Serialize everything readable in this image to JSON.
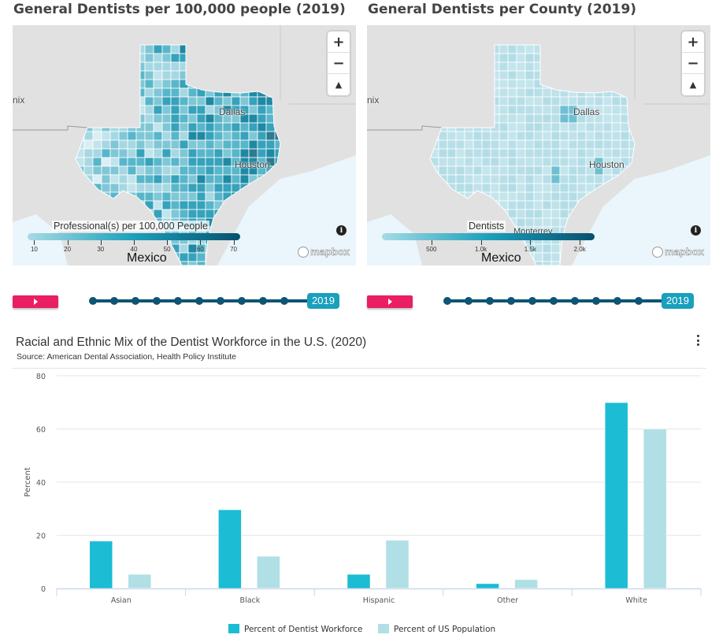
{
  "maps": [
    {
      "title": "General Dentists per 100,000 people (2019)",
      "legend_title": "Professional(s) per 100,000 People",
      "legend_ticks": [
        "10",
        "20",
        "30",
        "40",
        "50",
        "60",
        "70"
      ],
      "legend_range": [
        8,
        72
      ],
      "cities": {
        "left_label": "nix",
        "dallas": "Dallas",
        "houston": "Houston",
        "mexico": "Mexico",
        "extra": ""
      },
      "zoom_in": "+",
      "zoom_out": "−",
      "compass": "▲",
      "attribution": "mapbox",
      "info_icon": "i",
      "timeline_year": "2019",
      "shading": "varied"
    },
    {
      "title": "General Dentists per County (2019)",
      "legend_title": "Dentists",
      "legend_ticks": [
        "500",
        "1.0k",
        "1.5k",
        "2.0k"
      ],
      "legend_range": [
        0,
        2150
      ],
      "cities": {
        "left_label": "nix",
        "dallas": "Dallas",
        "houston": "Houston",
        "mexico": "Mexico",
        "extra": "Monterrey"
      },
      "zoom_in": "+",
      "zoom_out": "−",
      "compass": "▲",
      "attribution": "mapbox",
      "info_icon": "i",
      "timeline_year": "2019",
      "shading": "light"
    }
  ],
  "timeline": {
    "steps": 11,
    "play_icon": "play-icon"
  },
  "chart_data": {
    "type": "bar",
    "title": "Racial and Ethnic Mix of the Dentist Workforce in the U.S. (2020)",
    "subtitle": "Source: American Dental Association, Health Policy Institute",
    "xlabel": "",
    "ylabel": "Percent",
    "ylim": [
      0,
      80
    ],
    "yticks": [
      "0",
      "20",
      "40",
      "60",
      "80"
    ],
    "grid": true,
    "legend_position": "bottom-center",
    "categories": [
      "Asian",
      "Black",
      "Hispanic",
      "Other",
      "White"
    ],
    "series": [
      {
        "name": "Percent of Dentist Workforce",
        "color": "#1bbcd4",
        "values": [
          17.8,
          29.6,
          5.3,
          1.8,
          69.9
        ]
      },
      {
        "name": "Percent of US Population",
        "color": "#b0dfe6",
        "values": [
          5.3,
          12.1,
          18.1,
          3.3,
          59.9
        ]
      }
    ]
  },
  "menu_icon": "kebab-menu-icon"
}
